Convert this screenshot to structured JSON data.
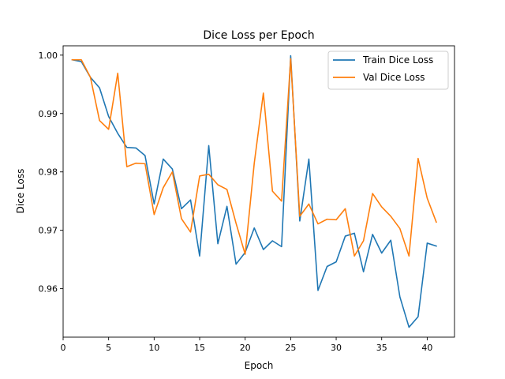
{
  "chart_data": {
    "type": "line",
    "title": "Dice Loss per Epoch",
    "xlabel": "Epoch",
    "ylabel": "Dice Loss",
    "xlim": [
      -0.0,
      43.0
    ],
    "ylim": [
      0.9517,
      1.0016
    ],
    "xticks": [
      0,
      5,
      10,
      15,
      20,
      25,
      30,
      35,
      40
    ],
    "xtick_labels": [
      "0",
      "5",
      "10",
      "15",
      "20",
      "25",
      "30",
      "35",
      "40"
    ],
    "yticks": [
      0.96,
      0.97,
      0.98,
      0.99,
      1.0
    ],
    "ytick_labels": [
      "0.96",
      "0.97",
      "0.98",
      "0.99",
      "1.00"
    ],
    "grid": false,
    "legend_position": "top-right",
    "x": [
      1,
      2,
      3,
      4,
      5,
      6,
      7,
      8,
      9,
      10,
      11,
      12,
      13,
      14,
      15,
      16,
      17,
      18,
      19,
      20,
      21,
      22,
      23,
      24,
      25,
      26,
      27,
      28,
      29,
      30,
      31,
      32,
      33,
      34,
      35,
      36,
      37,
      38,
      39,
      40,
      41
    ],
    "series": [
      {
        "name": "Train Dice Loss",
        "color": "#1f77b4",
        "values": [
          0.9992,
          0.9989,
          0.9962,
          0.9944,
          0.9895,
          0.9866,
          0.9842,
          0.9841,
          0.9828,
          0.9745,
          0.9822,
          0.9805,
          0.9737,
          0.9752,
          0.9656,
          0.9845,
          0.9677,
          0.9741,
          0.9642,
          0.9662,
          0.9704,
          0.9667,
          0.9682,
          0.9672,
          0.9999,
          0.9716,
          0.9822,
          0.9597,
          0.9638,
          0.9646,
          0.969,
          0.9695,
          0.9629,
          0.9693,
          0.9661,
          0.9683,
          0.9586,
          0.9534,
          0.9552,
          0.9678,
          0.9673
        ]
      },
      {
        "name": "Val Dice Loss",
        "color": "#ff7f0e",
        "values": [
          0.9992,
          0.9992,
          0.9962,
          0.9888,
          0.9873,
          0.9969,
          0.9809,
          0.9815,
          0.9814,
          0.9727,
          0.9773,
          0.98,
          0.972,
          0.9697,
          0.9793,
          0.9796,
          0.9778,
          0.977,
          0.9712,
          0.9659,
          0.9815,
          0.9935,
          0.9767,
          0.975,
          0.9994,
          0.9724,
          0.9745,
          0.9711,
          0.9719,
          0.9718,
          0.9737,
          0.9656,
          0.9682,
          0.9763,
          0.974,
          0.9724,
          0.9703,
          0.9656,
          0.9823,
          0.9755,
          0.9714
        ]
      }
    ]
  }
}
